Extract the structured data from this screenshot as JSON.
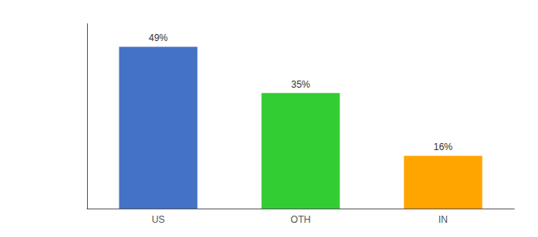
{
  "chart_data": {
    "type": "bar",
    "categories": [
      "US",
      "OTH",
      "IN"
    ],
    "values": [
      49,
      35,
      16
    ],
    "value_labels": [
      "49%",
      "35%",
      "16%"
    ],
    "colors": [
      "#4472C4",
      "#32CD32",
      "#FFA500"
    ],
    "ylim": [
      0,
      56
    ],
    "grid": false,
    "data_labels": true,
    "tick_labels": "x"
  }
}
